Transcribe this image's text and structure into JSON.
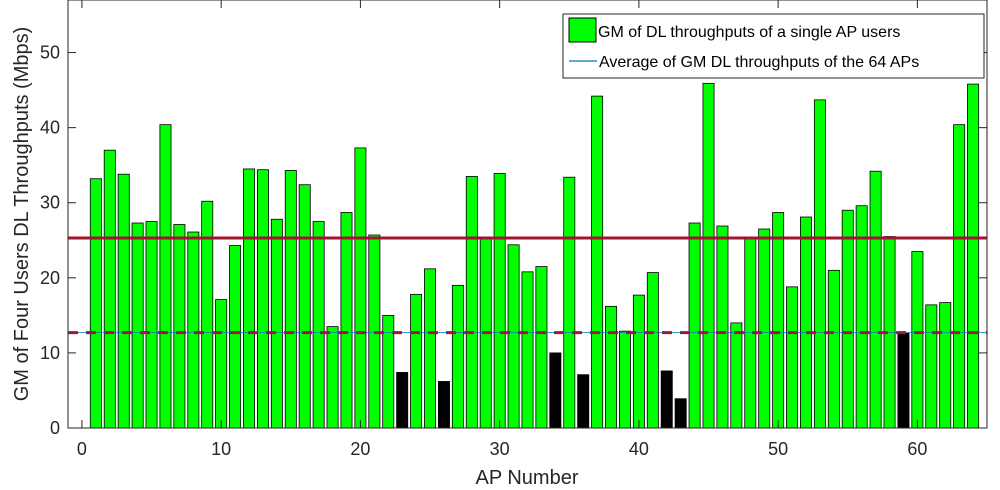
{
  "chart_data": {
    "type": "bar",
    "title": "",
    "xlabel": "AP Number",
    "ylabel": "GM of Four Users DL Throughputs (Mbps)",
    "xlim": [
      -1,
      65
    ],
    "ylim": [
      0,
      57
    ],
    "xticks": [
      0,
      10,
      20,
      30,
      40,
      50,
      60
    ],
    "yticks": [
      0,
      10,
      20,
      30,
      40,
      50
    ],
    "grid": false,
    "legend_position": "top-right",
    "legend": {
      "bars_label": "GM of DL throughputs of a single AP users",
      "line_label": "Average of GM DL throughputs of the 64 APs"
    },
    "x": [
      1,
      2,
      3,
      4,
      5,
      6,
      7,
      8,
      9,
      10,
      11,
      12,
      13,
      14,
      15,
      16,
      17,
      18,
      19,
      20,
      21,
      22,
      23,
      24,
      25,
      26,
      27,
      28,
      29,
      30,
      31,
      32,
      33,
      34,
      35,
      36,
      37,
      38,
      39,
      40,
      41,
      42,
      43,
      44,
      45,
      46,
      47,
      48,
      49,
      50,
      51,
      52,
      53,
      54,
      55,
      56,
      57,
      58,
      59,
      60,
      61,
      62,
      63,
      64
    ],
    "values": [
      33.2,
      37.0,
      33.8,
      27.3,
      27.5,
      40.4,
      27.1,
      26.1,
      30.2,
      17.1,
      24.3,
      34.5,
      34.4,
      27.8,
      34.3,
      32.4,
      27.5,
      13.5,
      28.7,
      37.3,
      25.7,
      15.0,
      7.4,
      17.8,
      21.2,
      6.2,
      19.0,
      33.5,
      25.3,
      33.9,
      24.4,
      20.8,
      21.5,
      10.0,
      33.4,
      7.1,
      44.2,
      16.2,
      12.9,
      17.7,
      20.7,
      7.6,
      3.9,
      27.3,
      45.9,
      26.9,
      14.0,
      25.3,
      26.5,
      28.7,
      18.8,
      28.1,
      43.7,
      21.0,
      29.0,
      29.6,
      34.2,
      25.5,
      12.6,
      23.5,
      16.4,
      16.7,
      40.4,
      45.8
    ],
    "low_threshold": 12.7,
    "average": 25.3,
    "colors": {
      "bar_normal": "#00ff00",
      "bar_low": "#000000",
      "bar_edge": "#000000",
      "average_line": "#a2142f",
      "threshold_line": "#a2142f",
      "legend_line": "#0072bd",
      "axis": "#262626"
    }
  }
}
